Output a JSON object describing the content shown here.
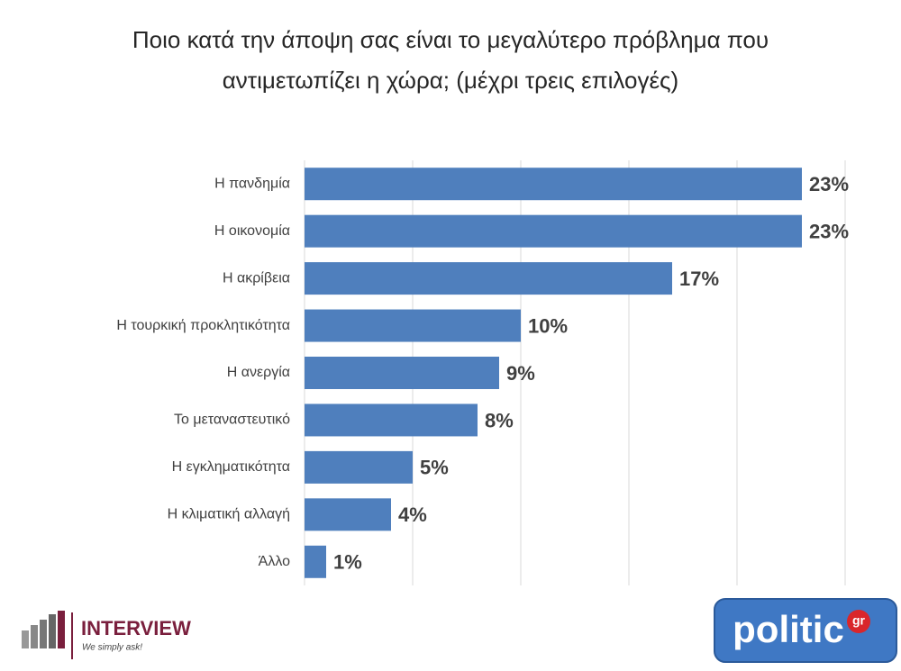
{
  "chart_data": {
    "type": "barh",
    "title": [
      "Ποιο κατά την άποψη σας είναι το μεγαλύτερο πρόβλημα που",
      "αντιμετωπίζει η χώρα; (μέχρι τρεις επιλογές)"
    ],
    "categories": [
      "Η πανδημία",
      "Η οικονομία",
      "Η ακρίβεια",
      "Η τουρκική προκλητικότητα",
      "Η ανεργία",
      "Το μεταναστευτικό",
      "Η εγκληματικότητα",
      "Η κλιματική αλλαγή",
      "Άλλο"
    ],
    "values": [
      23,
      23,
      17,
      10,
      9,
      8,
      5,
      4,
      1
    ],
    "value_labels": [
      "23%",
      "23%",
      "17%",
      "10%",
      "9%",
      "8%",
      "5%",
      "4%",
      "1%"
    ],
    "color": "#4f7fbd",
    "xlim": [
      0,
      25
    ],
    "xticks": [
      0,
      5,
      10,
      15,
      20,
      25
    ],
    "grid": true
  },
  "branding": {
    "left": {
      "name": "INTERVIEW",
      "slogan": "We simply ask!"
    },
    "right": {
      "name": "politic",
      "suffix": "gr"
    }
  }
}
